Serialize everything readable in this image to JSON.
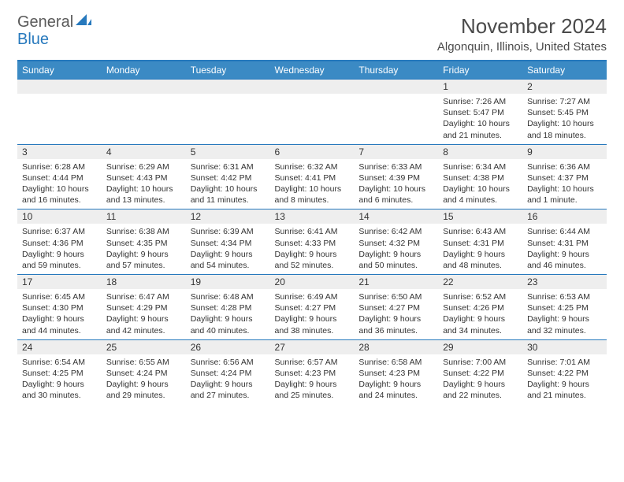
{
  "logo": {
    "text1": "General",
    "text2": "Blue"
  },
  "title": "November 2024",
  "location": "Algonquin, Illinois, United States",
  "colors": {
    "header_bg": "#3b8ac4",
    "border": "#2779bd",
    "date_bg": "#eeeeee"
  },
  "day_headers": [
    "Sunday",
    "Monday",
    "Tuesday",
    "Wednesday",
    "Thursday",
    "Friday",
    "Saturday"
  ],
  "weeks": [
    [
      {
        "date": "",
        "lines": []
      },
      {
        "date": "",
        "lines": []
      },
      {
        "date": "",
        "lines": []
      },
      {
        "date": "",
        "lines": []
      },
      {
        "date": "",
        "lines": []
      },
      {
        "date": "1",
        "lines": [
          "Sunrise: 7:26 AM",
          "Sunset: 5:47 PM",
          "Daylight: 10 hours and 21 minutes."
        ]
      },
      {
        "date": "2",
        "lines": [
          "Sunrise: 7:27 AM",
          "Sunset: 5:45 PM",
          "Daylight: 10 hours and 18 minutes."
        ]
      }
    ],
    [
      {
        "date": "3",
        "lines": [
          "Sunrise: 6:28 AM",
          "Sunset: 4:44 PM",
          "Daylight: 10 hours and 16 minutes."
        ]
      },
      {
        "date": "4",
        "lines": [
          "Sunrise: 6:29 AM",
          "Sunset: 4:43 PM",
          "Daylight: 10 hours and 13 minutes."
        ]
      },
      {
        "date": "5",
        "lines": [
          "Sunrise: 6:31 AM",
          "Sunset: 4:42 PM",
          "Daylight: 10 hours and 11 minutes."
        ]
      },
      {
        "date": "6",
        "lines": [
          "Sunrise: 6:32 AM",
          "Sunset: 4:41 PM",
          "Daylight: 10 hours and 8 minutes."
        ]
      },
      {
        "date": "7",
        "lines": [
          "Sunrise: 6:33 AM",
          "Sunset: 4:39 PM",
          "Daylight: 10 hours and 6 minutes."
        ]
      },
      {
        "date": "8",
        "lines": [
          "Sunrise: 6:34 AM",
          "Sunset: 4:38 PM",
          "Daylight: 10 hours and 4 minutes."
        ]
      },
      {
        "date": "9",
        "lines": [
          "Sunrise: 6:36 AM",
          "Sunset: 4:37 PM",
          "Daylight: 10 hours and 1 minute."
        ]
      }
    ],
    [
      {
        "date": "10",
        "lines": [
          "Sunrise: 6:37 AM",
          "Sunset: 4:36 PM",
          "Daylight: 9 hours and 59 minutes."
        ]
      },
      {
        "date": "11",
        "lines": [
          "Sunrise: 6:38 AM",
          "Sunset: 4:35 PM",
          "Daylight: 9 hours and 57 minutes."
        ]
      },
      {
        "date": "12",
        "lines": [
          "Sunrise: 6:39 AM",
          "Sunset: 4:34 PM",
          "Daylight: 9 hours and 54 minutes."
        ]
      },
      {
        "date": "13",
        "lines": [
          "Sunrise: 6:41 AM",
          "Sunset: 4:33 PM",
          "Daylight: 9 hours and 52 minutes."
        ]
      },
      {
        "date": "14",
        "lines": [
          "Sunrise: 6:42 AM",
          "Sunset: 4:32 PM",
          "Daylight: 9 hours and 50 minutes."
        ]
      },
      {
        "date": "15",
        "lines": [
          "Sunrise: 6:43 AM",
          "Sunset: 4:31 PM",
          "Daylight: 9 hours and 48 minutes."
        ]
      },
      {
        "date": "16",
        "lines": [
          "Sunrise: 6:44 AM",
          "Sunset: 4:31 PM",
          "Daylight: 9 hours and 46 minutes."
        ]
      }
    ],
    [
      {
        "date": "17",
        "lines": [
          "Sunrise: 6:45 AM",
          "Sunset: 4:30 PM",
          "Daylight: 9 hours and 44 minutes."
        ]
      },
      {
        "date": "18",
        "lines": [
          "Sunrise: 6:47 AM",
          "Sunset: 4:29 PM",
          "Daylight: 9 hours and 42 minutes."
        ]
      },
      {
        "date": "19",
        "lines": [
          "Sunrise: 6:48 AM",
          "Sunset: 4:28 PM",
          "Daylight: 9 hours and 40 minutes."
        ]
      },
      {
        "date": "20",
        "lines": [
          "Sunrise: 6:49 AM",
          "Sunset: 4:27 PM",
          "Daylight: 9 hours and 38 minutes."
        ]
      },
      {
        "date": "21",
        "lines": [
          "Sunrise: 6:50 AM",
          "Sunset: 4:27 PM",
          "Daylight: 9 hours and 36 minutes."
        ]
      },
      {
        "date": "22",
        "lines": [
          "Sunrise: 6:52 AM",
          "Sunset: 4:26 PM",
          "Daylight: 9 hours and 34 minutes."
        ]
      },
      {
        "date": "23",
        "lines": [
          "Sunrise: 6:53 AM",
          "Sunset: 4:25 PM",
          "Daylight: 9 hours and 32 minutes."
        ]
      }
    ],
    [
      {
        "date": "24",
        "lines": [
          "Sunrise: 6:54 AM",
          "Sunset: 4:25 PM",
          "Daylight: 9 hours and 30 minutes."
        ]
      },
      {
        "date": "25",
        "lines": [
          "Sunrise: 6:55 AM",
          "Sunset: 4:24 PM",
          "Daylight: 9 hours and 29 minutes."
        ]
      },
      {
        "date": "26",
        "lines": [
          "Sunrise: 6:56 AM",
          "Sunset: 4:24 PM",
          "Daylight: 9 hours and 27 minutes."
        ]
      },
      {
        "date": "27",
        "lines": [
          "Sunrise: 6:57 AM",
          "Sunset: 4:23 PM",
          "Daylight: 9 hours and 25 minutes."
        ]
      },
      {
        "date": "28",
        "lines": [
          "Sunrise: 6:58 AM",
          "Sunset: 4:23 PM",
          "Daylight: 9 hours and 24 minutes."
        ]
      },
      {
        "date": "29",
        "lines": [
          "Sunrise: 7:00 AM",
          "Sunset: 4:22 PM",
          "Daylight: 9 hours and 22 minutes."
        ]
      },
      {
        "date": "30",
        "lines": [
          "Sunrise: 7:01 AM",
          "Sunset: 4:22 PM",
          "Daylight: 9 hours and 21 minutes."
        ]
      }
    ]
  ]
}
